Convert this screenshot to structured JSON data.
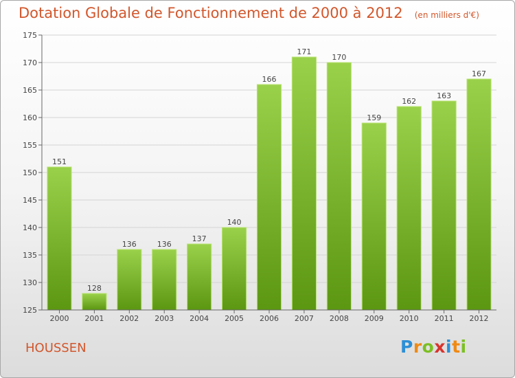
{
  "title": "Dotation Globale de Fonctionnement de 2000 à 2012",
  "unit_note": "(en milliers d'€)",
  "town": "HOUSSEN",
  "logo": {
    "text": "Proxiti",
    "letters": [
      {
        "ch": "P",
        "color": "#2d8fd6"
      },
      {
        "ch": "r",
        "color": "#ef8a14"
      },
      {
        "ch": "o",
        "color": "#7cbf24"
      },
      {
        "ch": "x",
        "color": "#d8342c"
      },
      {
        "ch": "i",
        "color": "#2d8fd6"
      },
      {
        "ch": "t",
        "color": "#ef8a14"
      },
      {
        "ch": "i",
        "color": "#7cbf24"
      }
    ]
  },
  "colors": {
    "title": "#d2562b",
    "bar_top": "#9ad14b",
    "bar_bottom": "#5c9712",
    "bar_edge": "#b9e372",
    "grid": "#d4d4d4",
    "axis": "#666666"
  },
  "chart_data": {
    "type": "bar",
    "categories": [
      "2000",
      "2001",
      "2002",
      "2003",
      "2004",
      "2005",
      "2006",
      "2007",
      "2008",
      "2009",
      "2010",
      "2011",
      "2012"
    ],
    "values": [
      151,
      128,
      136,
      136,
      137,
      140,
      166,
      171,
      170,
      159,
      162,
      163,
      167
    ],
    "ylim": [
      125,
      175
    ],
    "yticks": [
      125,
      130,
      135,
      140,
      145,
      150,
      155,
      160,
      165,
      170,
      175
    ],
    "grid": true,
    "legend": "none"
  }
}
